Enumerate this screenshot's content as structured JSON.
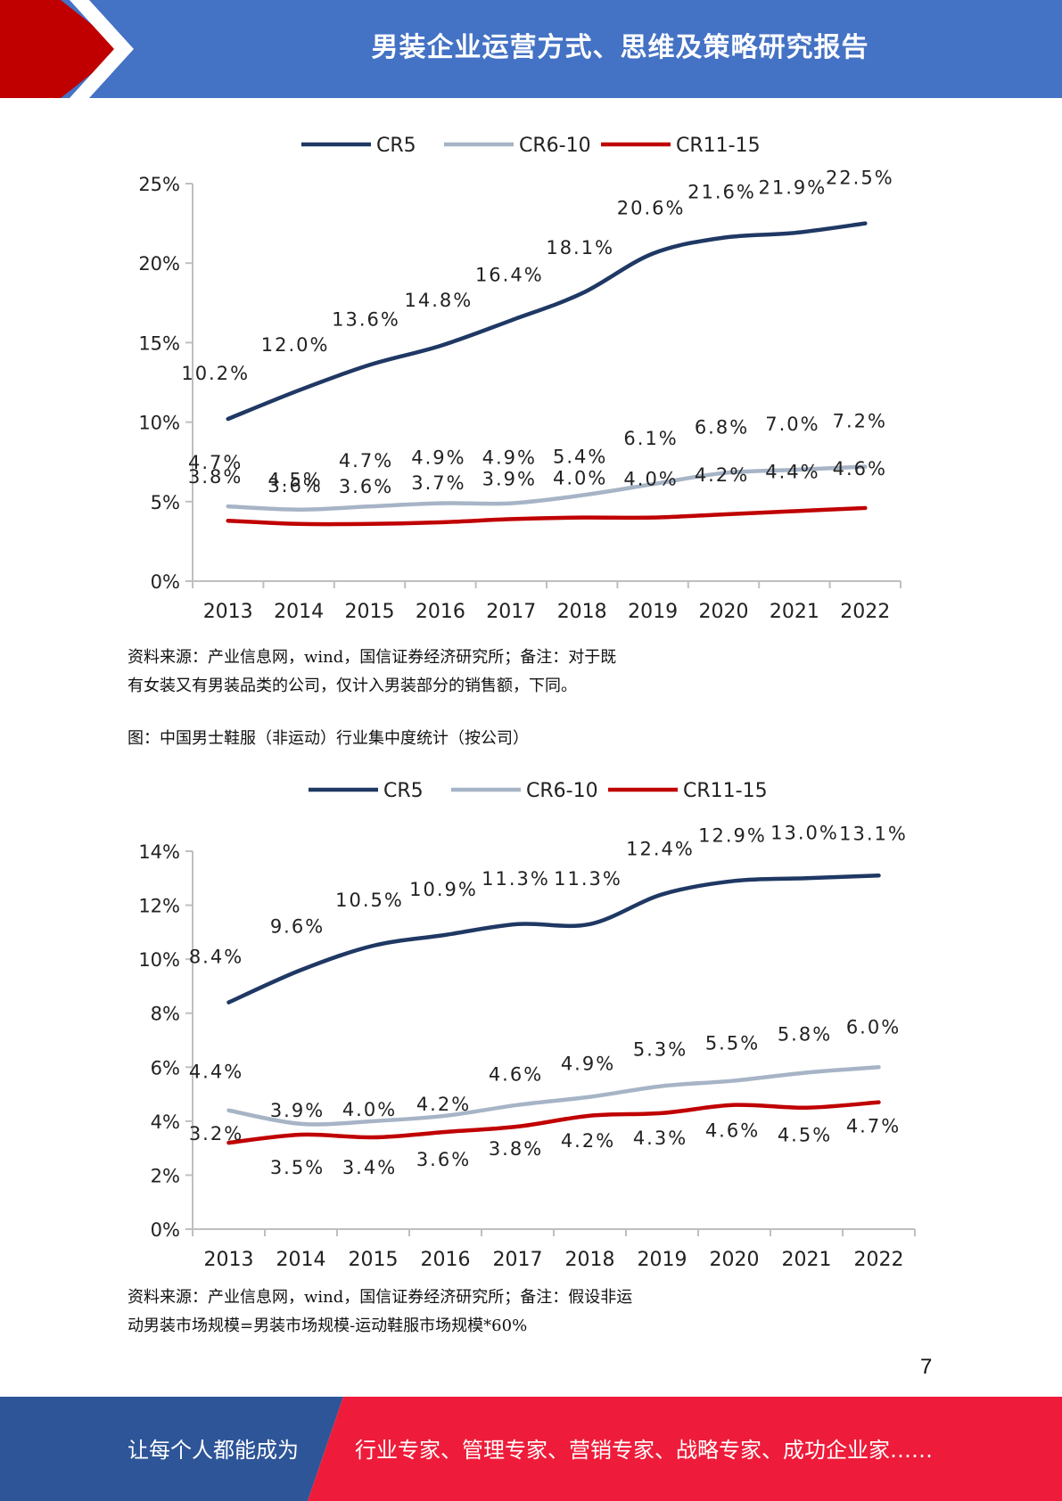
{
  "header": {
    "title": "男装企业运营方式、思维及策略研究报告",
    "bar_color": "#4472c4",
    "accent_color": "#c00000"
  },
  "charts": [
    {
      "legend": [
        "CR5",
        "CR6-10",
        "CR11-15"
      ],
      "note": "资料来源：产业信息网，wind，国信证券经济研究所；备注：对于既",
      "note2": "有女装又有男装品类的公司，仅计入男装部分的销售额，下同。",
      "caption": "图：中国男士鞋服（非运动）行业集中度统计（按公司）"
    },
    {
      "legend": [
        "CR5",
        "CR6-10",
        "CR11-15"
      ],
      "note": "资料来源：产业信息网，wind，国信证券经济研究所；备注：假设非运",
      "note2": "动男装市场规模=男装市场规模-运动鞋服市场规模*60%"
    }
  ],
  "chart_data": [
    {
      "type": "line",
      "categories": [
        "2013",
        "2014",
        "2015",
        "2016",
        "2017",
        "2018",
        "2019",
        "2020",
        "2021",
        "2022"
      ],
      "ylim": [
        0,
        25
      ],
      "yticks": [
        "0%",
        "5%",
        "10%",
        "15%",
        "20%",
        "25%"
      ],
      "legend_position": "top",
      "series": [
        {
          "name": "CR5",
          "color": "#1f3864",
          "values": [
            10.2,
            12.0,
            13.6,
            14.8,
            16.4,
            18.1,
            20.6,
            21.6,
            21.9,
            22.5
          ],
          "labels": [
            "10.2%",
            "12.0%",
            "13.6%",
            "14.8%",
            "16.4%",
            "18.1%",
            "20.6%",
            "21.6%",
            "21.9%",
            "22.5%"
          ]
        },
        {
          "name": "CR6-10",
          "color": "#a6b4c6",
          "values": [
            4.7,
            4.5,
            4.7,
            4.9,
            4.9,
            5.4,
            6.1,
            6.8,
            7.0,
            7.2
          ],
          "labels": [
            "4.7%",
            "4.5%",
            "4.7%",
            "4.9%",
            "4.9%",
            "5.4%",
            "6.1%",
            "6.8%",
            "7.0%",
            "7.2%"
          ]
        },
        {
          "name": "CR11-15",
          "color": "#c00000",
          "values": [
            3.8,
            3.6,
            3.6,
            3.7,
            3.9,
            4.0,
            4.0,
            4.2,
            4.4,
            4.6
          ],
          "labels": [
            "3.8%",
            "3.6%",
            "3.6%",
            "3.7%",
            "3.9%",
            "4.0%",
            "4.0%",
            "4.2%",
            "4.4%",
            "4.6%"
          ]
        }
      ]
    },
    {
      "type": "line",
      "categories": [
        "2013",
        "2014",
        "2015",
        "2016",
        "2017",
        "2018",
        "2019",
        "2020",
        "2021",
        "2022"
      ],
      "ylim": [
        0,
        14
      ],
      "yticks": [
        "0%",
        "2%",
        "4%",
        "6%",
        "8%",
        "10%",
        "12%",
        "14%"
      ],
      "legend_position": "top",
      "series": [
        {
          "name": "CR5",
          "color": "#1f3864",
          "values": [
            8.4,
            9.6,
            10.5,
            10.9,
            11.3,
            11.3,
            12.4,
            12.9,
            13.0,
            13.1
          ],
          "labels": [
            "8.4%",
            "9.6%",
            "10.5%",
            "10.9%",
            "11.3%",
            "11.3%",
            "12.4%",
            "12.9%",
            "13.0%",
            "13.1%"
          ]
        },
        {
          "name": "CR6-10",
          "color": "#a6b4c6",
          "values": [
            4.4,
            3.9,
            4.0,
            4.2,
            4.6,
            4.9,
            5.3,
            5.5,
            5.8,
            6.0
          ],
          "labels": [
            "4.4%",
            "3.9%",
            "4.0%",
            "4.2%",
            "4.6%",
            "4.9%",
            "5.3%",
            "5.5%",
            "5.8%",
            "6.0%"
          ]
        },
        {
          "name": "CR11-15",
          "color": "#c00000",
          "values": [
            3.2,
            3.5,
            3.4,
            3.6,
            3.8,
            4.2,
            4.3,
            4.6,
            4.5,
            4.7
          ],
          "labels": [
            "3.2%",
            "3.5%",
            "3.4%",
            "3.6%",
            "3.8%",
            "4.2%",
            "4.3%",
            "4.6%",
            "4.5%",
            "4.7%"
          ]
        }
      ]
    }
  ],
  "page_number": "7",
  "footer": {
    "left": "让每个人都能成为",
    "right": "行业专家、管理专家、营销专家、战略专家、成功企业家……",
    "left_color": "#2e5597",
    "right_color": "#ee1c3a"
  }
}
